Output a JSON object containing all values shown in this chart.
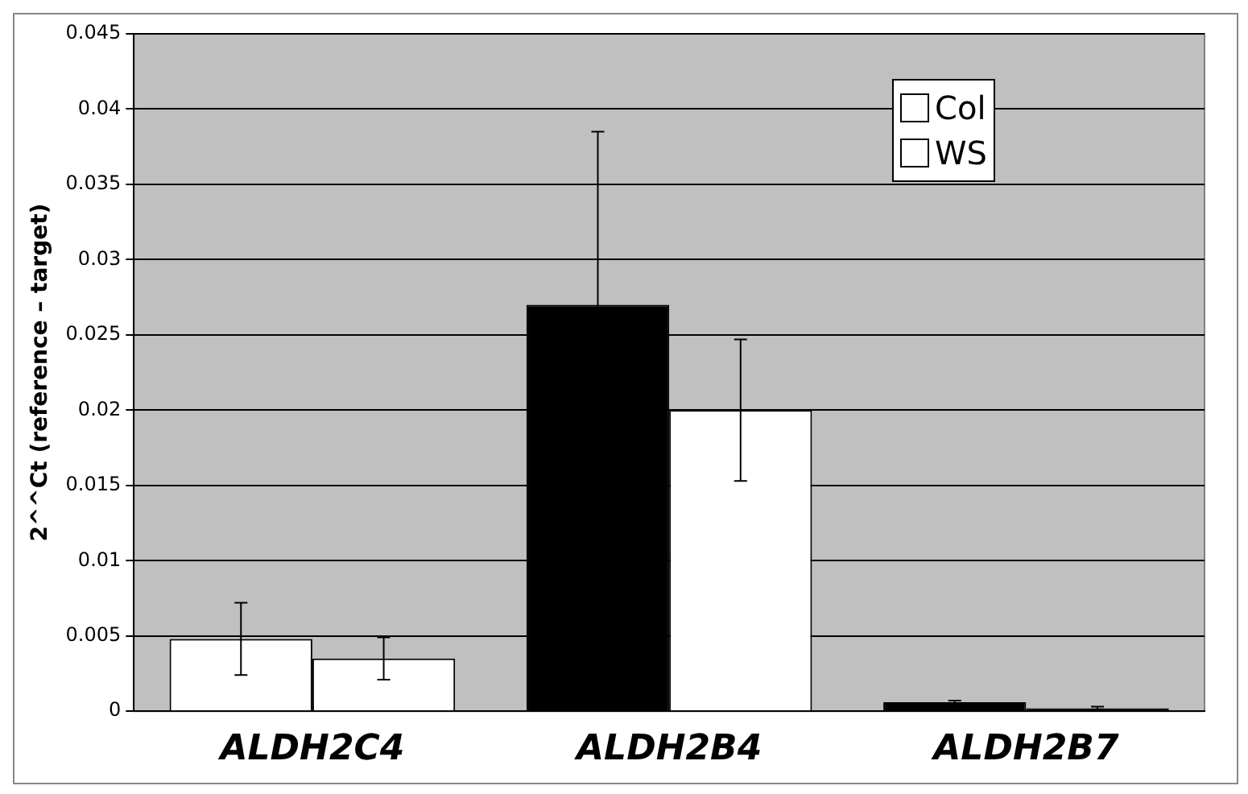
{
  "chart_data": {
    "type": "bar",
    "ylabel": "2^^Ct (reference – target)",
    "categories": [
      "ALDH2C4",
      "ALDH2B4",
      "ALDH2B7"
    ],
    "series": [
      {
        "name": "Col",
        "colors": [
          "#ffffff",
          "#000000",
          "#000000"
        ],
        "values": [
          0.0048,
          0.027,
          0.0006
        ],
        "errors": [
          0.0024,
          0.0115,
          0.0001
        ]
      },
      {
        "name": "WS",
        "colors": [
          "#ffffff",
          "#ffffff",
          "#000000"
        ],
        "values": [
          0.0035,
          0.02,
          0.0002
        ],
        "errors": [
          0.0014,
          0.0047,
          0.0001
        ]
      }
    ],
    "ylim": [
      0,
      0.045
    ],
    "yticks": [
      0,
      0.005,
      0.01,
      0.015,
      0.02,
      0.025,
      0.03,
      0.035,
      0.04,
      0.045
    ],
    "grid": "y",
    "legend": "top right"
  }
}
